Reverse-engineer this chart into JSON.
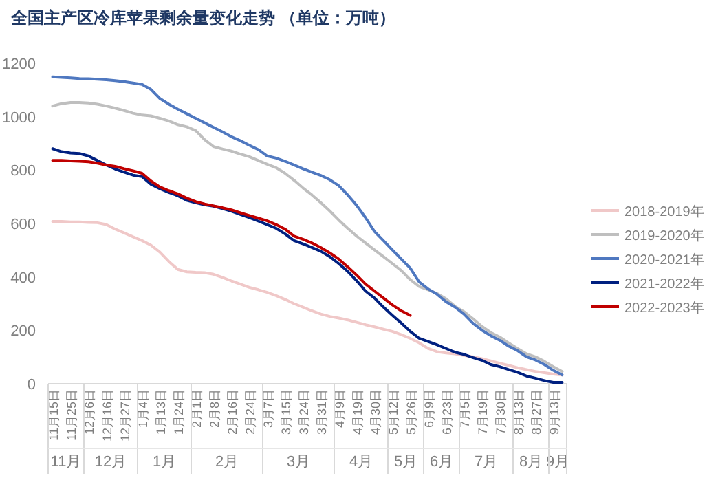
{
  "chart_data": {
    "type": "line",
    "title": "全国主产区冷库苹果剩余量变化走势 （单位：万吨）",
    "categories": [
      "11月15日",
      null,
      "11月25日",
      null,
      "12月6日",
      null,
      "12月16日",
      null,
      "12月27日",
      null,
      "1月4日",
      null,
      "1月13日",
      null,
      "1月24日",
      null,
      "2月1日",
      null,
      "2月8日",
      null,
      "2月16日",
      null,
      "2月24日",
      null,
      "3月7日",
      null,
      "3月15日",
      null,
      "3月24日",
      null,
      "3月31日",
      null,
      "4月9日",
      null,
      "4月19日",
      null,
      "4月30日",
      null,
      "5月12日",
      null,
      "5月26日",
      null,
      "6月9日",
      null,
      "6月23日",
      null,
      "7月5日",
      null,
      "7月19日",
      null,
      "7月30日",
      null,
      "8月13日",
      null,
      "8月27日",
      null,
      "9月13日",
      null
    ],
    "series": [
      {
        "name": "2018-2019年",
        "color": "#f0c8c8",
        "values": [
          608,
          608,
          606,
          606,
          604,
          603,
          596,
          579,
          565,
          550,
          536,
          519,
          493,
          458,
          428,
          419,
          417,
          416,
          410,
          398,
          385,
          373,
          361,
          352,
          342,
          330,
          316,
          300,
          287,
          273,
          261,
          252,
          246,
          239,
          230,
          221,
          213,
          204,
          196,
          184,
          170,
          153,
          132,
          120,
          115,
          112,
          106,
          101,
          94,
          86,
          77,
          69,
          60,
          53,
          46,
          41,
          36,
          33
        ]
      },
      {
        "name": "2019-2020年",
        "color": "#bfbfbf",
        "values": [
          1040,
          1049,
          1053,
          1053,
          1051,
          1047,
          1040,
          1032,
          1023,
          1013,
          1006,
          1003,
          994,
          984,
          970,
          962,
          948,
          914,
          888,
          879,
          871,
          860,
          850,
          836,
          822,
          809,
          788,
          762,
          733,
          707,
          678,
          647,
          613,
          582,
          553,
          527,
          501,
          476,
          450,
          424,
          390,
          364,
          352,
          338,
          318,
          290,
          270,
          244,
          215,
          192,
          175,
          153,
          132,
          112,
          101,
          84,
          64,
          46
        ]
      },
      {
        "name": "2020-2021年",
        "color": "#4f78c0",
        "values": [
          1149,
          1147,
          1145,
          1143,
          1142,
          1140,
          1138,
          1135,
          1131,
          1126,
          1121,
          1102,
          1068,
          1047,
          1028,
          1011,
          994,
          977,
          960,
          943,
          925,
          910,
          893,
          877,
          853,
          845,
          833,
          819,
          805,
          792,
          780,
          764,
          742,
          707,
          668,
          622,
          570,
          536,
          501,
          467,
          433,
          381,
          355,
          335,
          307,
          287,
          261,
          227,
          201,
          180,
          163,
          141,
          124,
          101,
          89,
          72,
          50,
          33
        ]
      },
      {
        "name": "2021-2022年",
        "color": "#002080",
        "values": [
          880,
          869,
          864,
          862,
          853,
          836,
          819,
          804,
          792,
          781,
          776,
          747,
          730,
          716,
          704,
          687,
          678,
          670,
          665,
          656,
          646,
          634,
          622,
          609,
          596,
          582,
          561,
          536,
          524,
          510,
          496,
          476,
          450,
          421,
          386,
          347,
          321,
          287,
          256,
          227,
          196,
          170,
          158,
          146,
          132,
          118,
          110,
          98,
          88,
          72,
          64,
          53,
          43,
          29,
          21,
          12,
          5,
          5
        ]
      },
      {
        "name": "2022-2023年",
        "color": "#c00000",
        "values": [
          836,
          836,
          834,
          833,
          831,
          826,
          819,
          814,
          805,
          797,
          788,
          759,
          737,
          723,
          711,
          695,
          682,
          673,
          666,
          659,
          651,
          640,
          630,
          620,
          610,
          596,
          579,
          553,
          541,
          527,
          510,
          490,
          467,
          438,
          407,
          373,
          347,
          321,
          295,
          273,
          256,
          null,
          null,
          null,
          null,
          null,
          null,
          null,
          null,
          null,
          null,
          null,
          null,
          null,
          null,
          null,
          null,
          null
        ]
      }
    ],
    "ylim": [
      0,
      1200
    ],
    "yticks": [
      0,
      200,
      400,
      600,
      800,
      1000,
      1200
    ],
    "legend": "right",
    "grid": false,
    "annotations": [
      "11月",
      "12月",
      "1月",
      "2月",
      "3月",
      "4月",
      "5月",
      "6月",
      "7月",
      "8月",
      "9月"
    ]
  }
}
